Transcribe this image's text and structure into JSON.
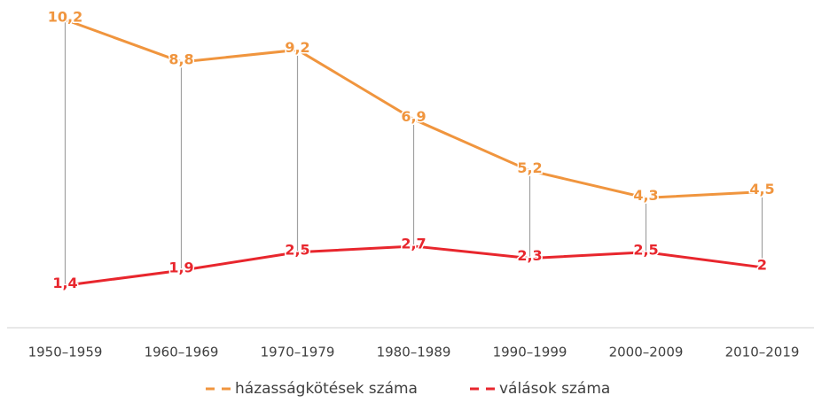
{
  "chart_data": {
    "type": "line",
    "categories": [
      "1950–1959",
      "1960–1969",
      "1970–1979",
      "1980–1989",
      "1990–1999",
      "2000–2009",
      "2010–2019"
    ],
    "series": [
      {
        "name": "házasságkötések száma",
        "color": "#f0953e",
        "values": [
          10.2,
          8.8,
          9.2,
          6.9,
          5.2,
          4.3,
          4.5
        ],
        "value_labels": [
          "10,2",
          "8,8",
          "9,2",
          "6,9",
          "5,2",
          "4,3",
          "4,5"
        ]
      },
      {
        "name": "válások száma",
        "color": "#e8262d",
        "values": [
          1.4,
          1.9,
          2.5,
          2.7,
          2.3,
          2.5,
          2
        ],
        "value_labels": [
          "1,4",
          "1,9",
          "2,5",
          "2,7",
          "2,3",
          "2,5",
          "2"
        ]
      }
    ],
    "ylim": [
      0,
      10.5
    ],
    "legend": "bottom",
    "drop_lines": true
  }
}
